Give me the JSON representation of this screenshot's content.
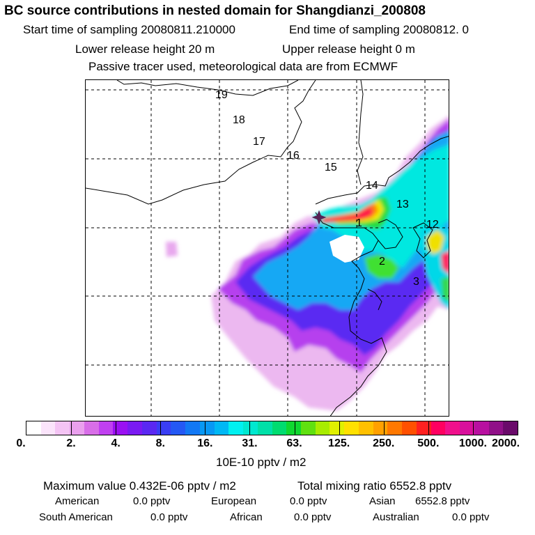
{
  "header": {
    "title": "BC  source contributions in nested domain for Shangdianzi_200808",
    "start_label": "Start time of sampling 20080811.210000",
    "end_label": "End time of sampling 20080812.     0",
    "lower_release": "Lower release height   20 m",
    "upper_release": "Upper release height    0 m",
    "tracer_note": "Passive tracer used, meteorological data are from ECMWF"
  },
  "map": {
    "trajectory_labels": [
      "19",
      "18",
      "17",
      "16",
      "15",
      "14",
      "13",
      "12",
      "1",
      "2",
      "3"
    ],
    "receptor_marker": "receptor-star-icon"
  },
  "colorbar": {
    "colors": [
      "#ffffff",
      "#fbe4fb",
      "#f4c4f4",
      "#eaa0ee",
      "#d86ee8",
      "#c040f0",
      "#9a10f2",
      "#7a1af2",
      "#5a28f2",
      "#3a3ef4",
      "#2458f4",
      "#1278f4",
      "#0898f4",
      "#00b8f4",
      "#00f0f0",
      "#00e8d0",
      "#00e0a8",
      "#00dc70",
      "#10d830",
      "#60e010",
      "#a8ec00",
      "#e0f000",
      "#ffe000",
      "#ffc000",
      "#ffa000",
      "#ff7800",
      "#ff5000",
      "#ff2020",
      "#ff0060",
      "#f0108c",
      "#d8109c",
      "#b810a0",
      "#901088",
      "#6a0a6a"
    ],
    "ticks": [
      "0.",
      "2.",
      "4.",
      "8.",
      "16.",
      "31.",
      "63.",
      "125.",
      "250.",
      "500.",
      "1000.",
      "2000."
    ],
    "unit": "10E-10 pptv / m2"
  },
  "footer": {
    "max_label": "Maximum value  0.432E-06 pptv / m2",
    "total_label": "Total mixing ratio     6552.8 pptv",
    "regions": [
      {
        "name": "American",
        "value": "0.0 pptv"
      },
      {
        "name": "European",
        "value": "0.0 pptv"
      },
      {
        "name": "Asian",
        "value": "6552.8 pptv"
      },
      {
        "name": "South American",
        "value": "0.0 pptv"
      },
      {
        "name": "African",
        "value": "0.0 pptv"
      },
      {
        "name": "Australian",
        "value": "0.0 pptv"
      }
    ]
  }
}
